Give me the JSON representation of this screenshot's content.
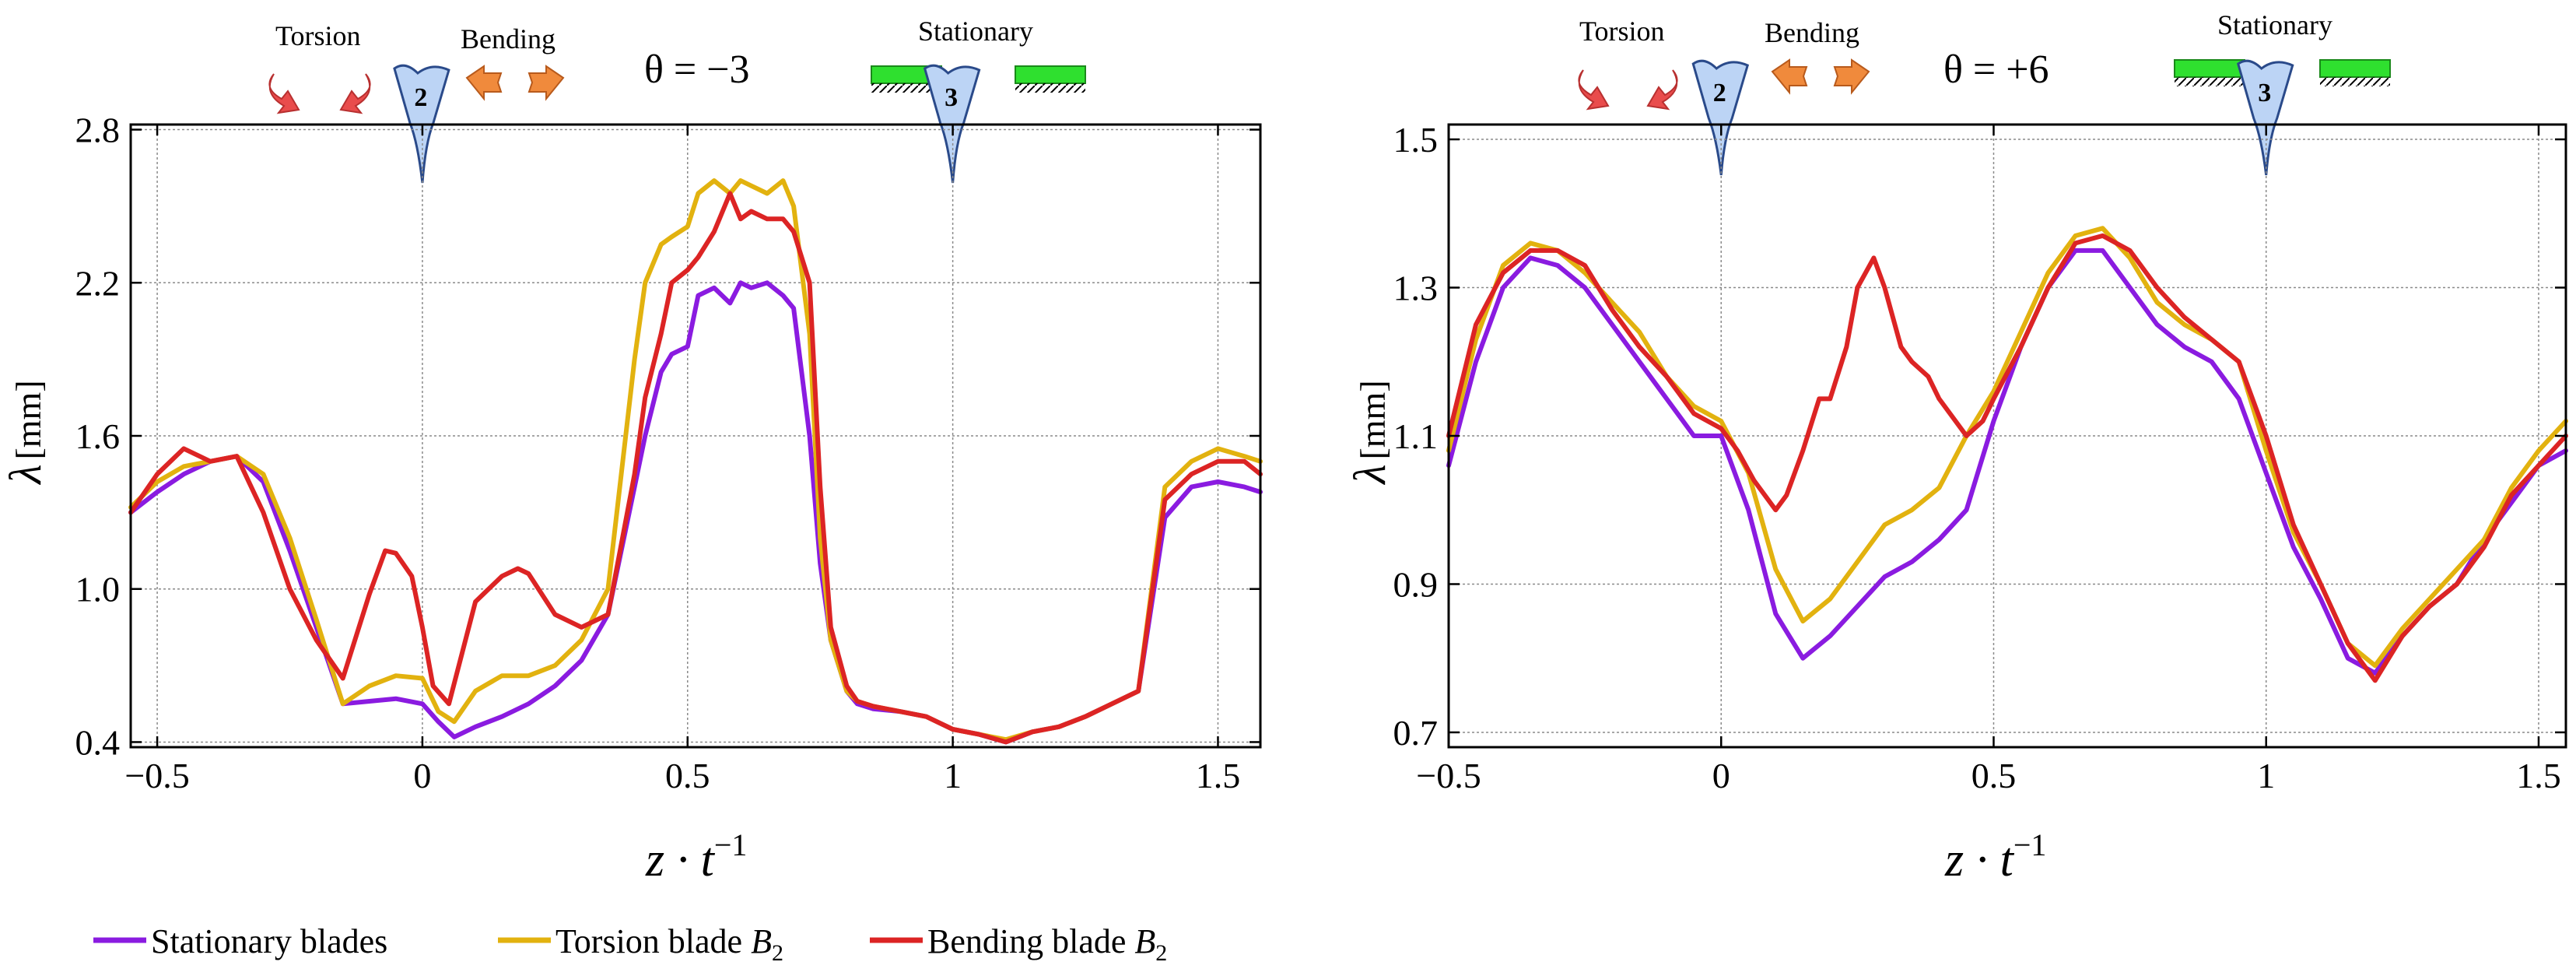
{
  "colors": {
    "stationary": "#8a1be0",
    "torsion": "#e2b20f",
    "bending": "#dc2424",
    "grid": "#8a8a8a",
    "blade": "#bcd4f5",
    "support": "#2fe02f",
    "arrow_orange": "#f08a3c",
    "arrow_red": "#e94c4c"
  },
  "legend": {
    "stationary": "Stationary blades",
    "torsion_prefix": "Torsion blade ",
    "bending_prefix": "Bending blade ",
    "blade_sym": "B",
    "blade_sub": "2"
  },
  "chart_data": [
    {
      "type": "line",
      "title": "θ = −3",
      "xlabel": "z · t",
      "xlabel_sup": "−1",
      "ylabel_sym": "λ",
      "ylabel_unit": "[mm]",
      "xlim": [
        -0.55,
        1.58
      ],
      "ylim": [
        0.38,
        2.82
      ],
      "xticks": [
        -0.5,
        0,
        0.5,
        1,
        1.5
      ],
      "xtick_labels": [
        "−0.5",
        "0",
        "0.5",
        "1",
        "1.5"
      ],
      "yticks": [
        0.4,
        1.0,
        1.6,
        2.2,
        2.8
      ],
      "ytick_labels": [
        "0.4",
        "1.0",
        "1.6",
        "2.2",
        "2.8"
      ],
      "grid": true,
      "annotations": {
        "torsion_label": "Torsion",
        "bending_label": "Bending",
        "stationary_label": "Stationary",
        "theta_label": "θ = −3",
        "blade_a_number": "2",
        "blade_b_number": "3",
        "blade_a_x": 0,
        "blade_b_x": 1
      },
      "series": [
        {
          "name": "Stationary blades",
          "x": [
            -0.55,
            -0.5,
            -0.45,
            -0.4,
            -0.35,
            -0.3,
            -0.25,
            -0.2,
            -0.15,
            -0.1,
            -0.05,
            0,
            0.03,
            0.06,
            0.1,
            0.15,
            0.2,
            0.25,
            0.3,
            0.35,
            0.4,
            0.42,
            0.45,
            0.47,
            0.5,
            0.52,
            0.55,
            0.58,
            0.6,
            0.62,
            0.65,
            0.68,
            0.7,
            0.73,
            0.75,
            0.77,
            0.8,
            0.82,
            0.85,
            0.9,
            0.95,
            1.0,
            1.05,
            1.1,
            1.15,
            1.2,
            1.25,
            1.3,
            1.35,
            1.4,
            1.45,
            1.5,
            1.55,
            1.58
          ],
          "y": [
            1.3,
            1.38,
            1.45,
            1.5,
            1.52,
            1.42,
            1.15,
            0.85,
            0.55,
            0.56,
            0.57,
            0.55,
            0.48,
            0.42,
            0.46,
            0.5,
            0.55,
            0.62,
            0.72,
            0.9,
            1.4,
            1.6,
            1.85,
            1.92,
            1.95,
            2.15,
            2.18,
            2.12,
            2.2,
            2.18,
            2.2,
            2.15,
            2.1,
            1.6,
            1.1,
            0.8,
            0.6,
            0.55,
            0.53,
            0.52,
            0.5,
            0.45,
            0.43,
            0.4,
            0.44,
            0.46,
            0.5,
            0.55,
            0.6,
            1.28,
            1.4,
            1.42,
            1.4,
            1.38
          ]
        },
        {
          "name": "Torsion blade B2",
          "x": [
            -0.55,
            -0.5,
            -0.45,
            -0.4,
            -0.35,
            -0.3,
            -0.25,
            -0.2,
            -0.15,
            -0.1,
            -0.05,
            0,
            0.03,
            0.06,
            0.1,
            0.15,
            0.2,
            0.25,
            0.3,
            0.35,
            0.4,
            0.42,
            0.45,
            0.47,
            0.5,
            0.52,
            0.55,
            0.58,
            0.6,
            0.62,
            0.65,
            0.68,
            0.7,
            0.73,
            0.75,
            0.77,
            0.8,
            0.82,
            0.85,
            0.9,
            0.95,
            1.0,
            1.05,
            1.1,
            1.15,
            1.2,
            1.25,
            1.3,
            1.35,
            1.4,
            1.45,
            1.5,
            1.55,
            1.58
          ],
          "y": [
            1.32,
            1.42,
            1.48,
            1.5,
            1.52,
            1.45,
            1.2,
            0.88,
            0.55,
            0.62,
            0.66,
            0.65,
            0.52,
            0.48,
            0.6,
            0.66,
            0.66,
            0.7,
            0.8,
            1.0,
            1.9,
            2.2,
            2.35,
            2.38,
            2.42,
            2.55,
            2.6,
            2.55,
            2.6,
            2.58,
            2.55,
            2.6,
            2.5,
            2.0,
            1.2,
            0.8,
            0.6,
            0.56,
            0.54,
            0.52,
            0.5,
            0.45,
            0.43,
            0.41,
            0.44,
            0.46,
            0.5,
            0.55,
            0.6,
            1.4,
            1.5,
            1.55,
            1.52,
            1.5
          ]
        },
        {
          "name": "Bending blade B2",
          "x": [
            -0.55,
            -0.5,
            -0.45,
            -0.4,
            -0.35,
            -0.3,
            -0.25,
            -0.2,
            -0.15,
            -0.1,
            -0.07,
            -0.05,
            -0.02,
            0,
            0.02,
            0.05,
            0.1,
            0.15,
            0.18,
            0.2,
            0.25,
            0.3,
            0.35,
            0.4,
            0.42,
            0.45,
            0.47,
            0.5,
            0.52,
            0.55,
            0.58,
            0.6,
            0.62,
            0.65,
            0.68,
            0.7,
            0.73,
            0.75,
            0.77,
            0.8,
            0.82,
            0.85,
            0.9,
            0.95,
            1.0,
            1.05,
            1.1,
            1.15,
            1.2,
            1.25,
            1.3,
            1.35,
            1.4,
            1.45,
            1.5,
            1.55,
            1.58
          ],
          "y": [
            1.3,
            1.45,
            1.55,
            1.5,
            1.52,
            1.3,
            1.0,
            0.8,
            0.65,
            0.98,
            1.15,
            1.14,
            1.05,
            0.85,
            0.62,
            0.55,
            0.95,
            1.05,
            1.08,
            1.06,
            0.9,
            0.85,
            0.9,
            1.45,
            1.75,
            2.0,
            2.2,
            2.25,
            2.3,
            2.4,
            2.55,
            2.45,
            2.48,
            2.45,
            2.45,
            2.4,
            2.2,
            1.4,
            0.85,
            0.62,
            0.56,
            0.54,
            0.52,
            0.5,
            0.45,
            0.43,
            0.4,
            0.44,
            0.46,
            0.5,
            0.55,
            0.6,
            1.35,
            1.45,
            1.5,
            1.5,
            1.45
          ]
        }
      ]
    },
    {
      "type": "line",
      "title": "θ = +6",
      "xlabel": "z · t",
      "xlabel_sup": "−1",
      "ylabel_sym": "λ",
      "ylabel_unit": "[mm]",
      "xlim": [
        -0.5,
        1.55
      ],
      "ylim": [
        0.68,
        1.52
      ],
      "xticks": [
        -0.5,
        0,
        0.5,
        1,
        1.5
      ],
      "xtick_labels": [
        "−0.5",
        "0",
        "0.5",
        "1",
        "1.5"
      ],
      "yticks": [
        0.7,
        0.9,
        1.1,
        1.3,
        1.5
      ],
      "ytick_labels": [
        "0.7",
        "0.9",
        "1.1",
        "1.3",
        "1.5"
      ],
      "grid": true,
      "annotations": {
        "torsion_label": "Torsion",
        "bending_label": "Bending",
        "stationary_label": "Stationary",
        "theta_label": "θ = +6",
        "blade_a_number": "2",
        "blade_b_number": "3",
        "blade_a_x": 0,
        "blade_b_x": 1
      },
      "series": [
        {
          "name": "Stationary blades",
          "x": [
            -0.5,
            -0.45,
            -0.4,
            -0.35,
            -0.3,
            -0.25,
            -0.2,
            -0.15,
            -0.1,
            -0.05,
            0,
            0.05,
            0.1,
            0.15,
            0.2,
            0.25,
            0.3,
            0.35,
            0.4,
            0.45,
            0.5,
            0.55,
            0.6,
            0.65,
            0.7,
            0.75,
            0.8,
            0.85,
            0.9,
            0.95,
            1.0,
            1.05,
            1.1,
            1.15,
            1.2,
            1.25,
            1.3,
            1.35,
            1.4,
            1.45,
            1.5,
            1.55
          ],
          "y": [
            1.06,
            1.2,
            1.3,
            1.34,
            1.33,
            1.3,
            1.25,
            1.2,
            1.15,
            1.1,
            1.1,
            1.0,
            0.86,
            0.8,
            0.83,
            0.87,
            0.91,
            0.93,
            0.96,
            1.0,
            1.12,
            1.22,
            1.3,
            1.35,
            1.35,
            1.3,
            1.25,
            1.22,
            1.2,
            1.15,
            1.05,
            0.95,
            0.88,
            0.8,
            0.78,
            0.83,
            0.87,
            0.9,
            0.96,
            1.01,
            1.06,
            1.08
          ]
        },
        {
          "name": "Torsion blade B2",
          "x": [
            -0.5,
            -0.45,
            -0.4,
            -0.35,
            -0.3,
            -0.25,
            -0.2,
            -0.15,
            -0.1,
            -0.05,
            0,
            0.05,
            0.1,
            0.15,
            0.2,
            0.25,
            0.3,
            0.35,
            0.4,
            0.45,
            0.5,
            0.55,
            0.6,
            0.65,
            0.7,
            0.75,
            0.8,
            0.85,
            0.9,
            0.95,
            1.0,
            1.05,
            1.1,
            1.15,
            1.2,
            1.25,
            1.3,
            1.35,
            1.4,
            1.45,
            1.5,
            1.55
          ],
          "y": [
            1.08,
            1.23,
            1.33,
            1.36,
            1.35,
            1.32,
            1.28,
            1.24,
            1.18,
            1.14,
            1.12,
            1.05,
            0.92,
            0.85,
            0.88,
            0.93,
            0.98,
            1.0,
            1.03,
            1.1,
            1.16,
            1.24,
            1.32,
            1.37,
            1.38,
            1.34,
            1.28,
            1.25,
            1.23,
            1.2,
            1.08,
            0.97,
            0.9,
            0.82,
            0.79,
            0.84,
            0.88,
            0.92,
            0.96,
            1.03,
            1.08,
            1.12
          ]
        },
        {
          "name": "Bending blade B2",
          "x": [
            -0.5,
            -0.45,
            -0.4,
            -0.35,
            -0.3,
            -0.25,
            -0.2,
            -0.15,
            -0.1,
            -0.05,
            0,
            0.03,
            0.06,
            0.1,
            0.12,
            0.15,
            0.18,
            0.2,
            0.23,
            0.25,
            0.28,
            0.3,
            0.33,
            0.35,
            0.38,
            0.4,
            0.43,
            0.45,
            0.48,
            0.5,
            0.55,
            0.6,
            0.65,
            0.7,
            0.75,
            0.8,
            0.85,
            0.9,
            0.95,
            1.0,
            1.05,
            1.1,
            1.15,
            1.2,
            1.25,
            1.3,
            1.35,
            1.4,
            1.45,
            1.5,
            1.55
          ],
          "y": [
            1.1,
            1.25,
            1.32,
            1.35,
            1.35,
            1.33,
            1.27,
            1.22,
            1.18,
            1.13,
            1.11,
            1.08,
            1.04,
            1.0,
            1.02,
            1.08,
            1.15,
            1.15,
            1.22,
            1.3,
            1.34,
            1.3,
            1.22,
            1.2,
            1.18,
            1.15,
            1.12,
            1.1,
            1.12,
            1.15,
            1.22,
            1.3,
            1.36,
            1.37,
            1.35,
            1.3,
            1.26,
            1.23,
            1.2,
            1.1,
            0.98,
            0.9,
            0.82,
            0.77,
            0.83,
            0.87,
            0.9,
            0.95,
            1.02,
            1.06,
            1.1
          ]
        }
      ]
    }
  ]
}
